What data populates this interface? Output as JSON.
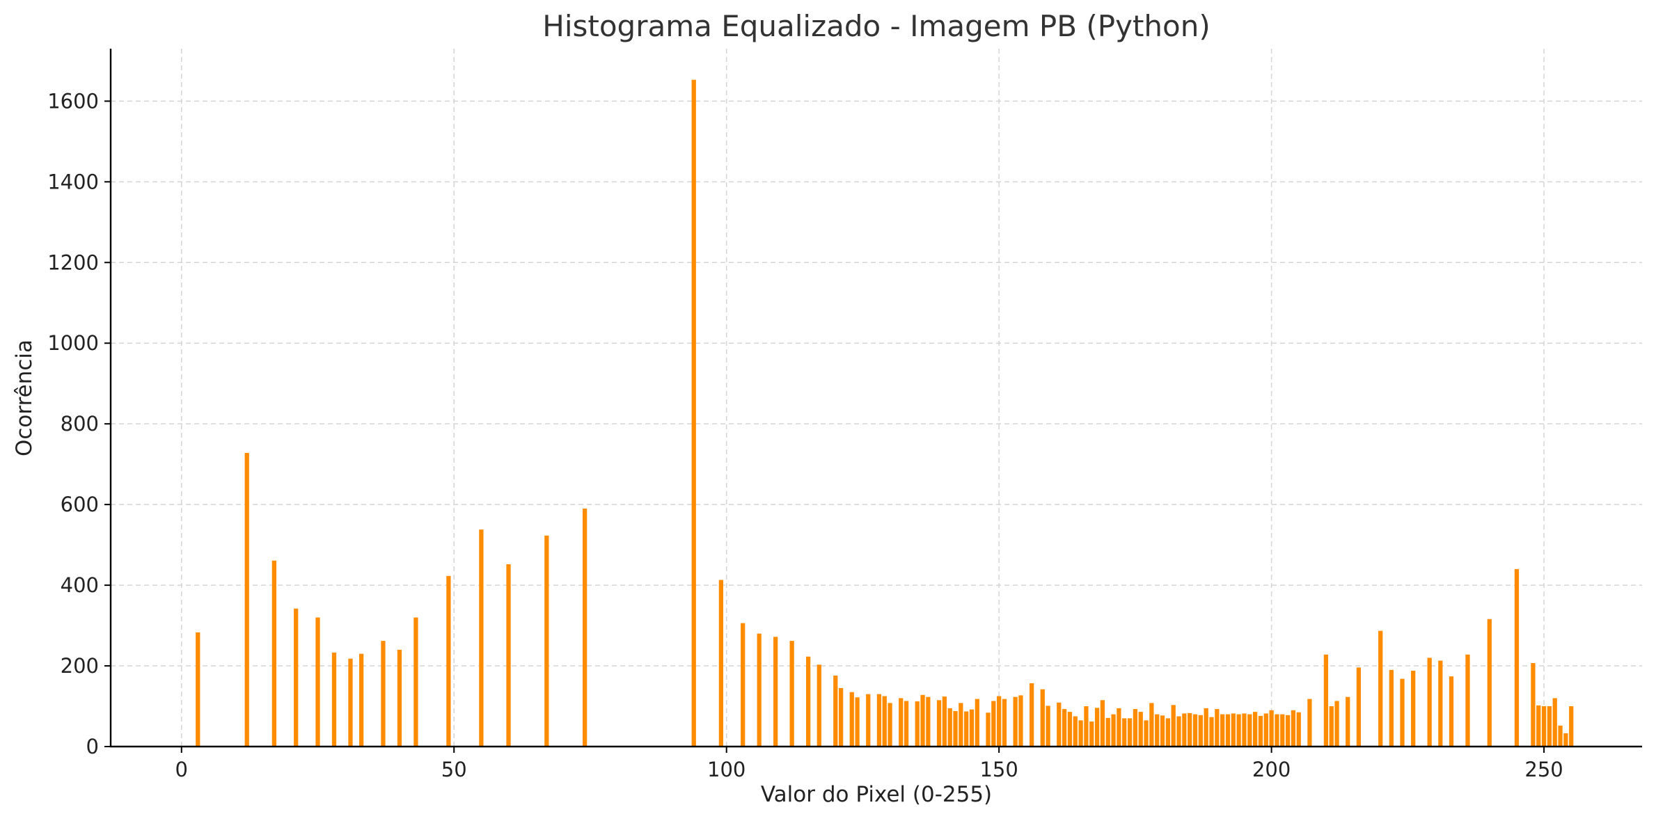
{
  "chart_data": {
    "type": "bar",
    "title": "Histograma Equalizado - Imagem PB (Python)",
    "xlabel": "Valor do Pixel (0-255)",
    "ylabel": "Ocorrência",
    "xlim": [
      -13,
      268
    ],
    "ylim": [
      0,
      1730
    ],
    "xticks": [
      0,
      50,
      100,
      150,
      200,
      250
    ],
    "yticks": [
      0,
      200,
      400,
      600,
      800,
      1000,
      1200,
      1400,
      1600
    ],
    "grid": true,
    "bar_color": "#ff8c00",
    "series": [
      {
        "x": [
          3,
          12,
          17,
          21,
          25,
          28,
          31,
          33,
          37,
          40,
          43,
          49,
          55,
          60,
          67,
          74,
          94,
          99,
          103,
          106,
          109,
          112,
          115,
          117,
          120,
          121,
          123,
          124,
          126,
          128,
          129,
          130,
          132,
          133,
          135,
          136,
          137,
          139,
          140,
          141,
          142,
          143,
          144,
          145,
          146,
          148,
          149,
          150,
          151,
          153,
          154,
          156,
          158,
          159,
          161,
          162,
          163,
          164,
          165,
          166,
          167,
          168,
          169,
          170,
          171,
          172,
          173,
          174,
          175,
          176,
          177,
          178,
          179,
          180,
          181,
          182,
          183,
          184,
          185,
          186,
          187,
          188,
          189,
          190,
          191,
          192,
          193,
          194,
          195,
          196,
          197,
          198,
          199,
          200,
          201,
          202,
          203,
          204,
          205,
          207,
          210,
          211,
          212,
          214,
          216,
          220,
          222,
          224,
          226,
          229,
          231,
          233,
          236,
          240,
          245,
          248,
          249,
          250,
          251,
          252,
          253,
          254,
          255
        ],
        "values": [
          283,
          728,
          461,
          342,
          320,
          233,
          218,
          230,
          262,
          240,
          320,
          423,
          538,
          452,
          523,
          590,
          1653,
          413,
          306,
          280,
          272,
          262,
          223,
          203,
          176,
          145,
          135,
          122,
          130,
          130,
          125,
          108,
          120,
          113,
          112,
          128,
          123,
          115,
          124,
          95,
          88,
          108,
          87,
          92,
          118,
          84,
          113,
          125,
          118,
          123,
          127,
          157,
          142,
          101,
          109,
          93,
          86,
          75,
          65,
          100,
          62,
          96,
          115,
          71,
          80,
          95,
          70,
          70,
          93,
          86,
          65,
          108,
          80,
          77,
          70,
          103,
          75,
          82,
          83,
          80,
          78,
          95,
          73,
          93,
          80,
          80,
          82,
          80,
          82,
          80,
          86,
          76,
          82,
          90,
          80,
          80,
          78,
          90,
          85,
          118,
          228,
          100,
          113,
          123,
          196,
          287,
          190,
          168,
          188,
          220,
          213,
          174,
          228,
          316,
          440,
          207,
          102,
          100,
          100,
          120,
          52,
          33,
          100
        ]
      }
    ]
  }
}
